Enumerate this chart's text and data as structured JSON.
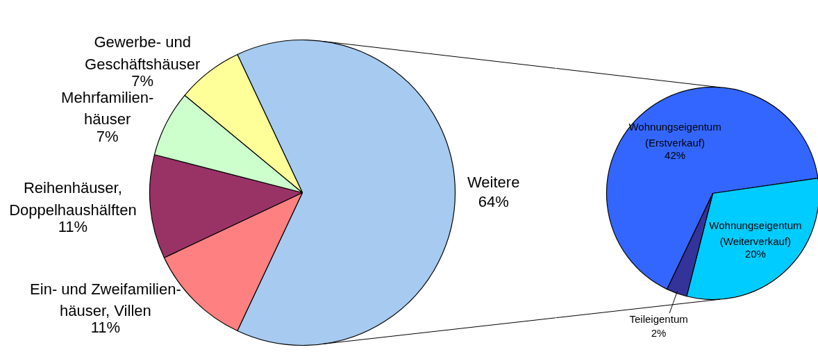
{
  "chart_data": [
    {
      "type": "pie",
      "categories": [
        "Weitere",
        "Ein- und Zweifamilien-\nhäuser, Villen",
        "Reihenhäuser,\nDoppelhaushälften",
        "Mehrfamilien-\nhäuser",
        "Gewerbe- und\nGeschäftshäuser"
      ],
      "values": [
        64,
        11,
        11,
        7,
        7
      ],
      "colors": [
        "#a6caf0",
        "#ff8080",
        "#993366",
        "#ccffcc",
        "#ffff99"
      ],
      "value_labels": [
        "64%",
        "11%",
        "11%",
        "7%",
        "7%"
      ]
    },
    {
      "type": "pie",
      "categories": [
        "Wohnungseigentum\n(Erstverkauf)",
        "Wohnungseigentum\n(Weiterverkauf)",
        "Teileigentum"
      ],
      "values": [
        42,
        20,
        2
      ],
      "colors": [
        "#3366ff",
        "#00ccff",
        "#333399"
      ],
      "value_labels": [
        "42%",
        "20%",
        "2%"
      ]
    }
  ]
}
